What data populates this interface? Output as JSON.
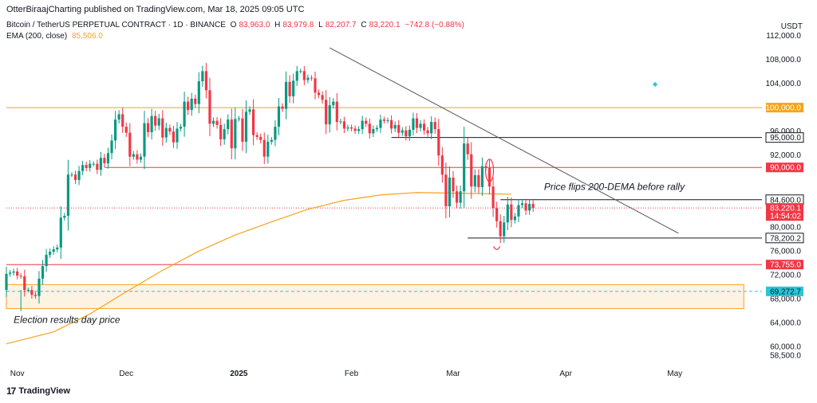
{
  "header": {
    "publish_text": "OtterBiraajCharting published on TradingView.com, Mar 18, 2025 09:05 UTC",
    "symbol": "Bitcoin / TetherUS PERPETUAL CONTRACT · 1D · BINANCE",
    "ohlc": {
      "open_label": "O",
      "open": "83,963.0",
      "high_label": "H",
      "high": "83,979.8",
      "low_label": "L",
      "low": "82,207.7",
      "close_label": "C",
      "close": "83,220.1",
      "change": "−742.8 (−0.88%)"
    },
    "ema_label": "EMA (200, close)",
    "ema_value": "85,506.0",
    "currency": "USDT"
  },
  "footer": {
    "brand": "TradingView"
  },
  "colors": {
    "up": "#089981",
    "down": "#f23645",
    "ema": "#f7a21b",
    "resistance_orange": "#f7a21b",
    "red_level": "#f23645",
    "black_level": "#131722",
    "current_price": "#f23645",
    "cyan": "#26c6da"
  },
  "chart_data": {
    "type": "candlestick",
    "y_axis": {
      "ticks": [
        "112,000.0",
        "108,000.0",
        "104,000.0",
        "96,000.0",
        "92,000.0",
        "80,000.0",
        "76,000.0",
        "72,000.0",
        "68,000.0",
        "64,000.0",
        "60,000.0",
        "58,500.0"
      ],
      "tick_values": [
        112000,
        108000,
        104000,
        96000,
        92000,
        80000,
        76000,
        72000,
        68000,
        64000,
        60000,
        58500
      ],
      "range": [
        57000,
        114000
      ]
    },
    "x_axis": {
      "labels": [
        "Nov",
        "Dec",
        "2025",
        "Feb",
        "Mar",
        "Apr",
        "May"
      ],
      "label_day_index": [
        0,
        30,
        61,
        92,
        120,
        151,
        181
      ],
      "range_days": [
        -3,
        205
      ]
    },
    "price_labels": [
      {
        "text": "100,000.0",
        "value": 100000,
        "style": "orange"
      },
      {
        "text": "95,000.0",
        "value": 95000,
        "style": "black"
      },
      {
        "text": "90,000.0",
        "value": 90000,
        "style": "red"
      },
      {
        "text": "84,600.0",
        "value": 84600,
        "style": "black"
      },
      {
        "text": "83,220.1",
        "value": 83220.1,
        "style": "current"
      },
      {
        "text": "14:54:02",
        "value": 81880,
        "style": "countdown"
      },
      {
        "text": "78,200.2",
        "value": 78200.2,
        "style": "black"
      },
      {
        "text": "73,755.0",
        "value": 73755,
        "style": "red"
      },
      {
        "text": "69,272.7",
        "value": 69272.7,
        "style": "cyan"
      }
    ],
    "horizontal_lines": [
      {
        "value": 100000,
        "color": "#f7a21b",
        "from_day": -3,
        "to_day": 205
      },
      {
        "value": 90000,
        "color": "#f23645",
        "from_day": 24,
        "to_day": 205
      },
      {
        "value": 73755,
        "color": "#f23645",
        "from_day": -3,
        "to_day": 205
      },
      {
        "value": 95000,
        "color": "#131722",
        "from_day": 103,
        "to_day": 205
      },
      {
        "value": 84600,
        "color": "#131722",
        "from_day": 133,
        "to_day": 205
      },
      {
        "value": 78200.2,
        "color": "#131722",
        "from_day": 124,
        "to_day": 205
      },
      {
        "value": 83220.1,
        "color": "#f23645",
        "from_day": -3,
        "to_day": 205,
        "dotted": true
      },
      {
        "value": 69272.7,
        "color": "#26c6da",
        "from_day": -3,
        "to_day": 205,
        "dashed": true
      }
    ],
    "zone": {
      "from_day": -3,
      "to_day": 200,
      "top": 70400,
      "bottom": 66400,
      "color": "#f7a21b"
    },
    "trendline": {
      "start_day": 86,
      "start_value": 110000,
      "end_day": 182,
      "end_value": 79000
    },
    "annotations": [
      {
        "text": "Price flips 200-DEMA before rally",
        "day": 145,
        "value": 86200
      },
      {
        "text": "Election results day price",
        "day": -1,
        "value": 64000
      }
    ],
    "ema": {
      "name": "EMA (200, close)",
      "days": [
        -3,
        10,
        20,
        30,
        40,
        50,
        60,
        70,
        80,
        90,
        100,
        110,
        120,
        130,
        136
      ],
      "values": [
        60500,
        62500,
        65500,
        69200,
        72800,
        76000,
        78700,
        80900,
        83000,
        84500,
        85400,
        85800,
        85700,
        85600,
        85506
      ]
    },
    "candles": {
      "start_day": -3,
      "close": [
        72200,
        72400,
        72600,
        71900,
        71800,
        69500,
        69500,
        68700,
        68500,
        71400,
        73500,
        75400,
        75900,
        76300,
        76600,
        81600,
        81900,
        88800,
        88800,
        87900,
        89400,
        90400,
        89900,
        90600,
        90600,
        89600,
        91600,
        90700,
        92400,
        94500,
        98000,
        98900,
        96800,
        95800,
        91800,
        92200,
        91300,
        91800,
        97400,
        95900,
        98600,
        97000,
        98200,
        95000,
        96600,
        96000,
        94200,
        96500,
        96800,
        101000,
        99600,
        101500,
        100600,
        104400,
        106100,
        102900,
        97300,
        97800,
        97100,
        94700,
        96400,
        98000,
        93200,
        98100,
        98200,
        94300,
        99300,
        99700,
        95400,
        95100,
        94600,
        91800,
        94300,
        94600,
        96800,
        100200,
        99800,
        104300,
        101900,
        104500,
        106100,
        106100,
        104600,
        105000,
        104900,
        102500,
        102100,
        101300,
        97200,
        100400,
        101000,
        97600,
        97700,
        96500,
        96700,
        96500,
        96100,
        96400,
        97800,
        97300,
        95700,
        96400,
        96600,
        98000,
        97800,
        97900,
        96500,
        97100,
        95800,
        96200,
        95200,
        96300,
        98200,
        96600,
        97300,
        96200,
        95700,
        97600,
        96400,
        92000,
        88800,
        83500,
        88300,
        86000,
        84100,
        86000,
        94000,
        92200,
        86800,
        88700,
        86700,
        90200,
        89900,
        86800,
        83200,
        81000,
        78500,
        80800,
        83800,
        81200,
        81800,
        83700,
        84000,
        82800,
        83900,
        83200
      ],
      "open": [
        69500,
        72200,
        72400,
        72600,
        71900,
        71800,
        69500,
        69500,
        68700,
        68500,
        71400,
        73500,
        75400,
        75900,
        76300,
        76600,
        81600,
        81900,
        88800,
        88800,
        87900,
        89400,
        90400,
        89900,
        90600,
        90600,
        89600,
        91600,
        90700,
        92400,
        94500,
        98000,
        98900,
        96800,
        95800,
        91800,
        92200,
        91300,
        91800,
        97400,
        95900,
        98600,
        97000,
        98200,
        95000,
        96600,
        96000,
        94200,
        96500,
        96800,
        101000,
        99600,
        101500,
        100600,
        104400,
        106100,
        102900,
        97300,
        97800,
        97100,
        94700,
        96400,
        98000,
        93200,
        98100,
        98200,
        94300,
        99300,
        99700,
        95400,
        95100,
        94600,
        91800,
        94300,
        94600,
        96800,
        100200,
        99800,
        104300,
        101900,
        104500,
        106100,
        106100,
        104600,
        105000,
        104900,
        102500,
        102100,
        101300,
        97200,
        100400,
        101000,
        97600,
        97700,
        96500,
        96700,
        96500,
        96100,
        96400,
        97800,
        97300,
        95700,
        96400,
        96600,
        98000,
        97800,
        97900,
        96500,
        97100,
        95800,
        96200,
        95200,
        96300,
        98200,
        96600,
        97300,
        96200,
        95700,
        97600,
        96400,
        92000,
        88800,
        83500,
        88300,
        86000,
        84100,
        86000,
        94000,
        92200,
        86800,
        88700,
        86700,
        90200,
        89900,
        86800,
        83200,
        81000,
        78500,
        80800,
        83800,
        81200,
        81800,
        83700,
        84000,
        82800,
        83900
      ]
    }
  }
}
